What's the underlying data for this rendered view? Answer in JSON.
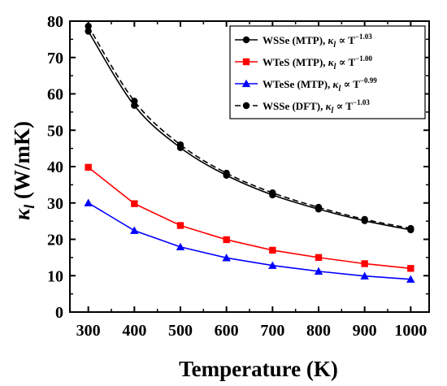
{
  "chart_data": {
    "type": "line",
    "xlabel": "Temperature (K)",
    "ylabel_symbol": "κ",
    "ylabel_sub": "l",
    "ylabel_unit": " (W/mK)",
    "xlim": [
      260,
      1040
    ],
    "ylim": [
      0,
      80
    ],
    "xticks": [
      300,
      400,
      500,
      600,
      700,
      800,
      900,
      1000
    ],
    "yticks": [
      0,
      10,
      20,
      30,
      40,
      50,
      60,
      70,
      80
    ],
    "grid": false,
    "legend_position": "top-right",
    "x": [
      300,
      400,
      500,
      600,
      700,
      800,
      900,
      1000
    ],
    "series": [
      {
        "name": "WSSe (MTP),",
        "legend_symbol": "κ",
        "legend_sub": "l",
        "legend_prop": " ∝ T",
        "legend_exp": "−1.03",
        "color": "#000000",
        "marker": "circle",
        "dash": "solid",
        "values": [
          77.2,
          56.8,
          45.2,
          37.6,
          32.2,
          28.3,
          25.1,
          22.6
        ]
      },
      {
        "name": "WTeS (MTP),",
        "legend_symbol": "κ",
        "legend_sub": "l",
        "legend_prop": " ∝ T",
        "legend_exp": "−1.00",
        "color": "#ff0000",
        "marker": "square",
        "dash": "solid",
        "values": [
          39.8,
          29.8,
          23.8,
          19.9,
          17.0,
          15.0,
          13.3,
          12.0
        ]
      },
      {
        "name": "WTeSe (MTP),",
        "legend_symbol": "κ",
        "legend_sub": "l",
        "legend_prop": " ∝ T",
        "legend_exp": "−0.99",
        "color": "#0000ff",
        "marker": "triangle",
        "dash": "solid",
        "values": [
          30.0,
          22.4,
          17.9,
          14.9,
          12.8,
          11.2,
          9.9,
          9.0
        ]
      },
      {
        "name": "WSSe (DFT),",
        "legend_symbol": "κ",
        "legend_sub": "l",
        "legend_prop": " ∝ T",
        "legend_exp": "−1.03",
        "color": "#000000",
        "marker": "circle",
        "dash": "dashed",
        "values": [
          78.6,
          58.0,
          46.0,
          38.2,
          32.8,
          28.8,
          25.5,
          23.0
        ]
      }
    ]
  }
}
